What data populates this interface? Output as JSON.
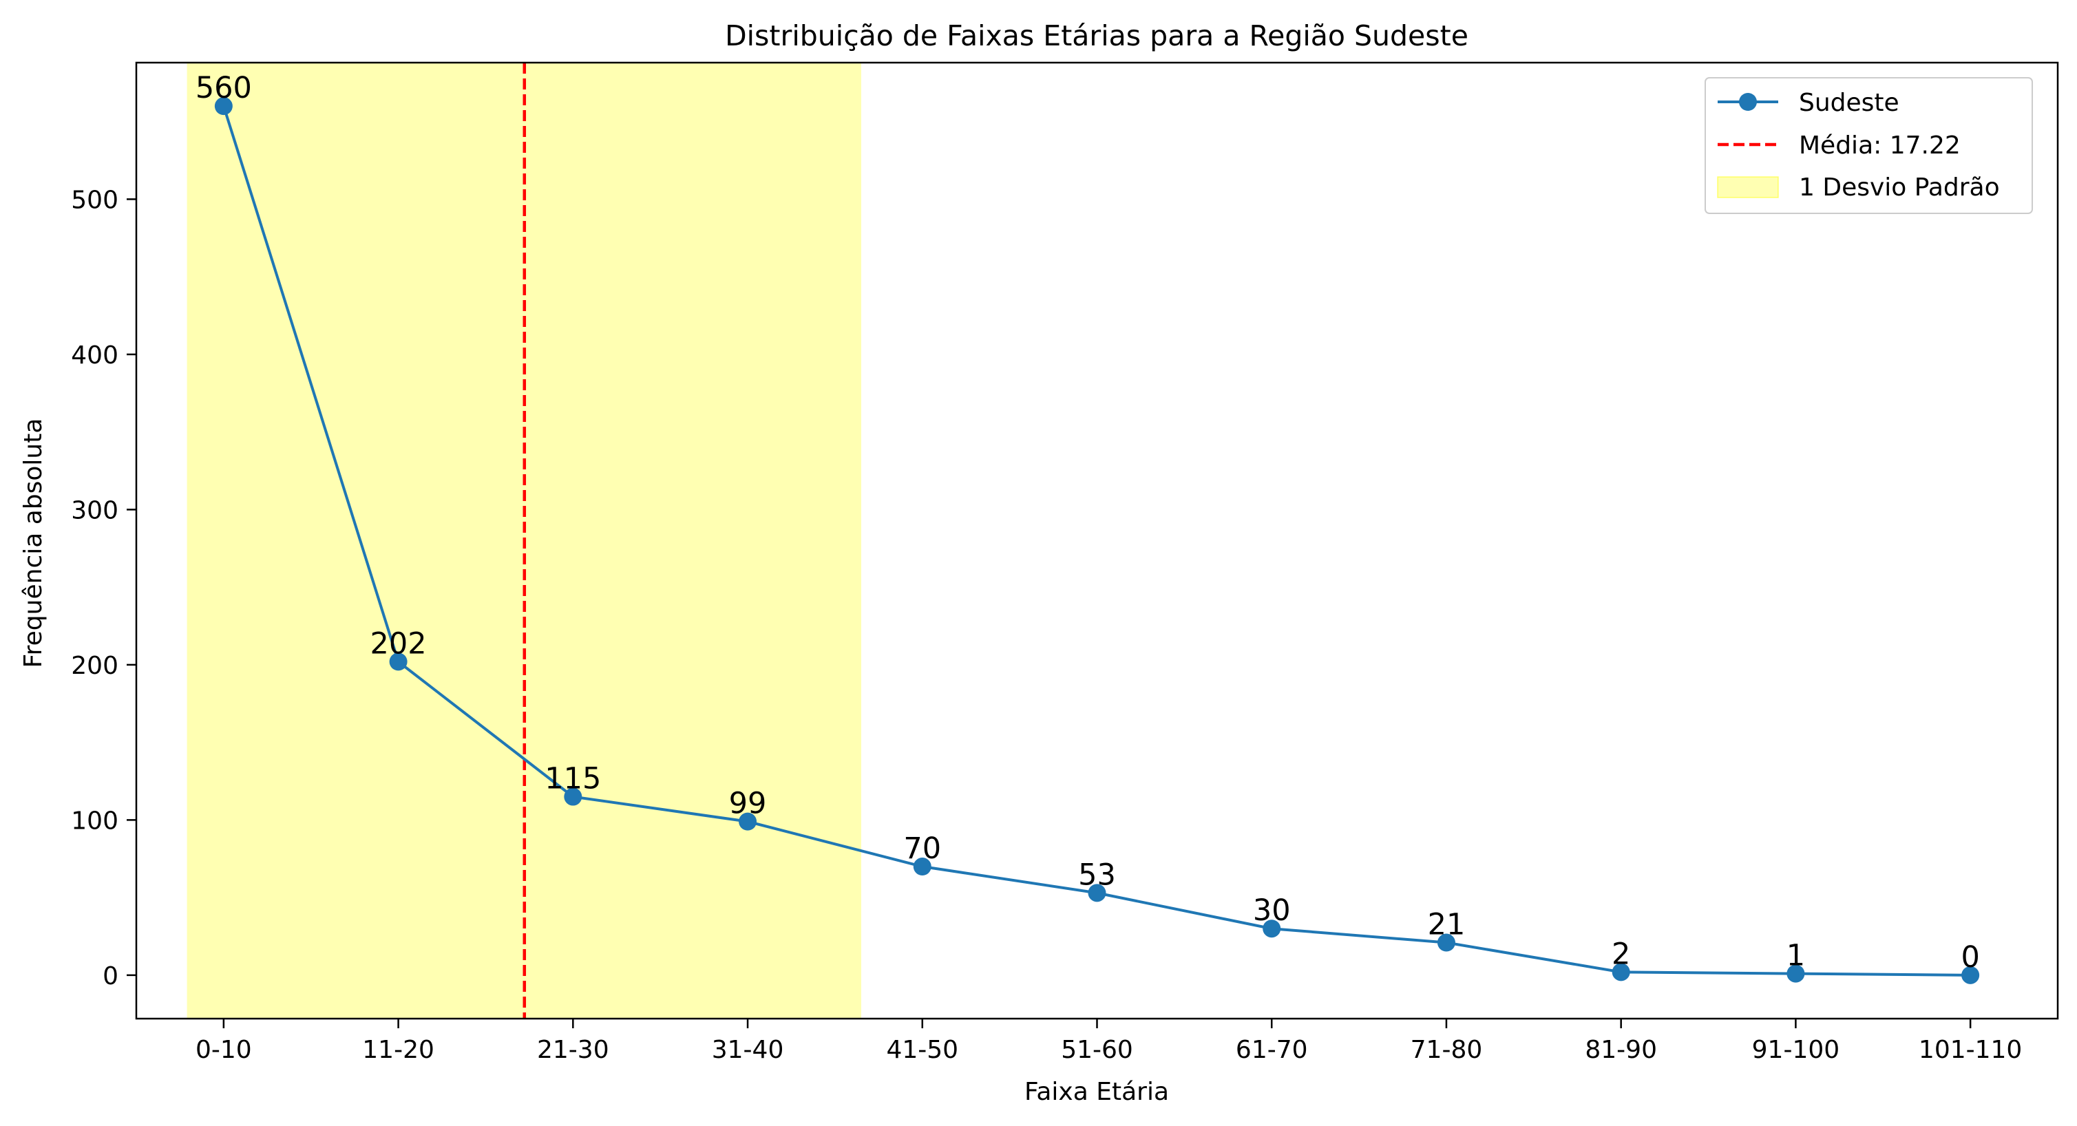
{
  "chart_data": {
    "type": "line",
    "title": "Distribuição de Faixas Etárias para a Região Sudeste",
    "xlabel": "Faixa Etária",
    "ylabel": "Frequência absoluta",
    "categories": [
      "0-10",
      "11-20",
      "21-30",
      "31-40",
      "41-50",
      "51-60",
      "61-70",
      "71-80",
      "81-90",
      "91-100",
      "101-110"
    ],
    "series": [
      {
        "name": "Sudeste",
        "values": [
          560,
          202,
          115,
          99,
          70,
          53,
          30,
          21,
          2,
          1,
          0
        ],
        "color": "#1f77b4"
      }
    ],
    "data_labels": [
      "560",
      "202",
      "115",
      "99",
      "70",
      "53",
      "30",
      "21",
      "2",
      "1",
      "0"
    ],
    "mean_line": {
      "label": "Média: 17.22",
      "x_value": 17.22,
      "x_units_per_category": 10,
      "color": "#ff0000",
      "style": "dashed"
    },
    "std_band": {
      "label": "1 Desvio Padrão",
      "x_from": -2.1,
      "x_to": 36.5,
      "color": "#ffff00",
      "opacity": 0.3
    },
    "yticks": [
      0,
      100,
      200,
      300,
      400,
      500
    ],
    "ylim": [
      -28,
      588
    ],
    "xlim": [
      -0.5,
      10.5
    ],
    "grid": false,
    "legend_position": "top-right"
  }
}
